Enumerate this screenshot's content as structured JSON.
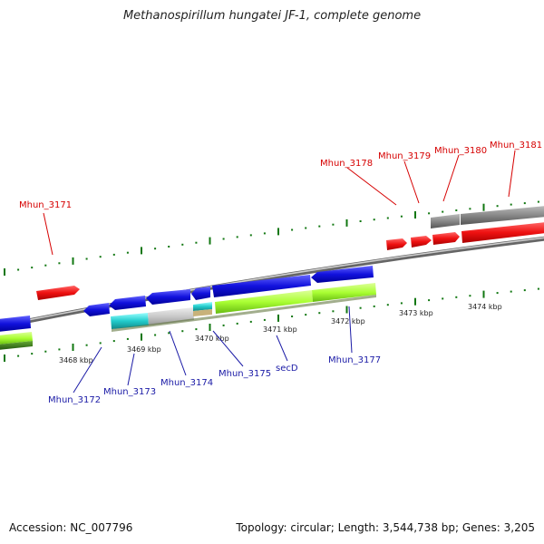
{
  "title": "Methanospirillum hungatei JF-1, complete genome",
  "footer": {
    "accession": "Accession: NC_007796",
    "topology": "Topology: circular; Length: 3,544,738 bp; Genes: 3,205"
  },
  "kbp_labels": [
    "3468 kbp",
    "3469 kbp",
    "3470 kbp",
    "3471 kbp",
    "3472 kbp",
    "3473 kbp",
    "3474 kbp"
  ],
  "gene_labels": {
    "mhun_3171": "Mhun_3171",
    "mhun_3178": "Mhun_3178",
    "mhun_3179": "Mhun_3179",
    "mhun_3180": "Mhun_3180",
    "mhun_3181": "Mhun_3181",
    "mhun_3172": "Mhun_3172",
    "mhun_3173": "Mhun_3173",
    "mhun_3174": "Mhun_3174",
    "mhun_3175": "Mhun_3175",
    "secd": "secD",
    "mhun_3177": "Mhun_3177"
  },
  "colors": {
    "forward_cds": "#ee1111",
    "reverse_cds": "#1111dd",
    "feature_green": "#aaff33",
    "feature_gray": "#888888",
    "feature_cyan": "#22cccc",
    "backbone": "#777777",
    "tick": "#117711"
  }
}
